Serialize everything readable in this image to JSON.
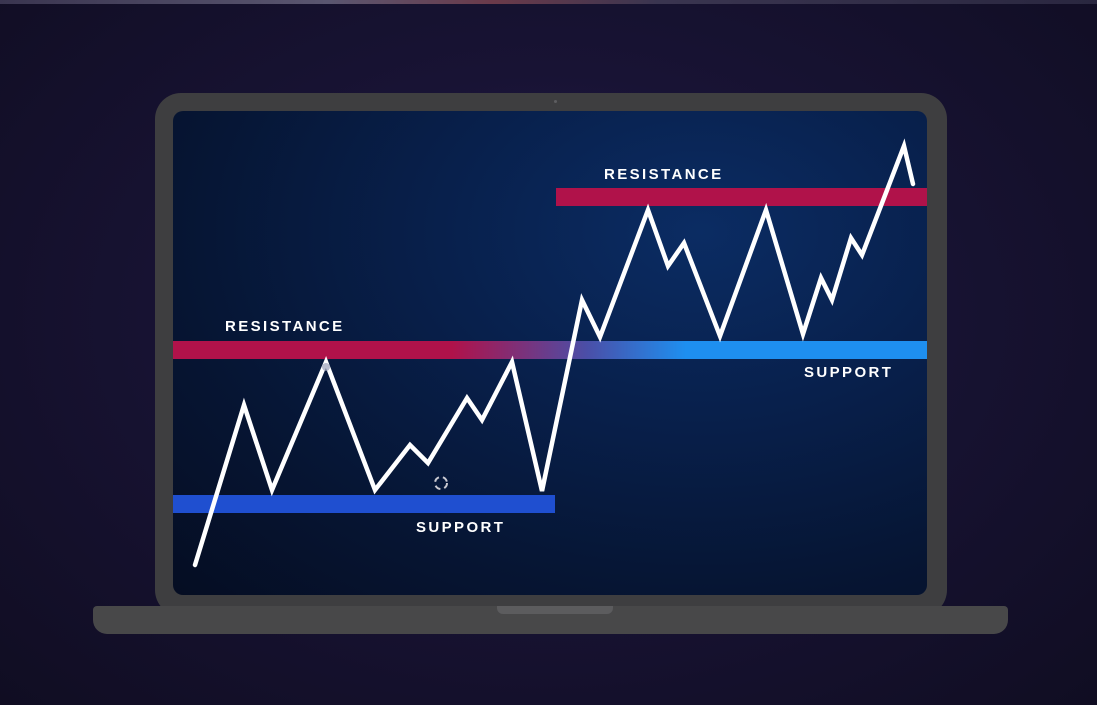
{
  "labels": {
    "resistance_lower": "RESISTANCE",
    "resistance_upper": "RESISTANCE",
    "support_lower": "SUPPORT",
    "support_upper": "SUPPORT"
  },
  "colors": {
    "resistance": "#b0124a",
    "support_lower": "#1f4fd0",
    "support_upper": "#1e8ff0",
    "price_line": "#ffffff"
  }
}
